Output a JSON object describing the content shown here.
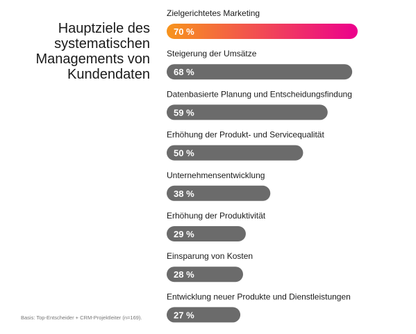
{
  "title_lines": [
    "Hauptziele des",
    "systematischen",
    "Managements von",
    "Kundendaten"
  ],
  "footnote": "Basis: Top-Entscheider + CRM-Projektleiter (n=169).",
  "colors": {
    "bar": "#6b6b6b",
    "highlight_start": "#f7941d",
    "highlight_end": "#ec008c",
    "label": "#1a1a1a",
    "value_text": "#ffffff"
  },
  "chart_data": {
    "type": "bar",
    "orientation": "horizontal",
    "title": "Hauptziele des systematischen Managements von Kundendaten",
    "categories": [
      "Zielgerichtetes Marketing",
      "Steigerung der Umsätze",
      "Datenbasierte Planung und Entscheidungsfindung",
      "Erhöhung der Produkt- und Servicequalität",
      "Unternehmensentwicklung",
      "Erhöhung der Produktivität",
      "Einsparung von Kosten",
      "Entwicklung neuer Produkte und Dienstleistungen"
    ],
    "values": [
      70,
      68,
      59,
      50,
      38,
      29,
      28,
      27
    ],
    "value_labels": [
      "70 %",
      "68 %",
      "59 %",
      "50 %",
      "38 %",
      "29 %",
      "28 %",
      "27 %"
    ],
    "unit": "%",
    "highlight_index": 0,
    "xlim": [
      0,
      100
    ],
    "grid": false,
    "legend": "none",
    "xlabel": "",
    "ylabel": ""
  }
}
